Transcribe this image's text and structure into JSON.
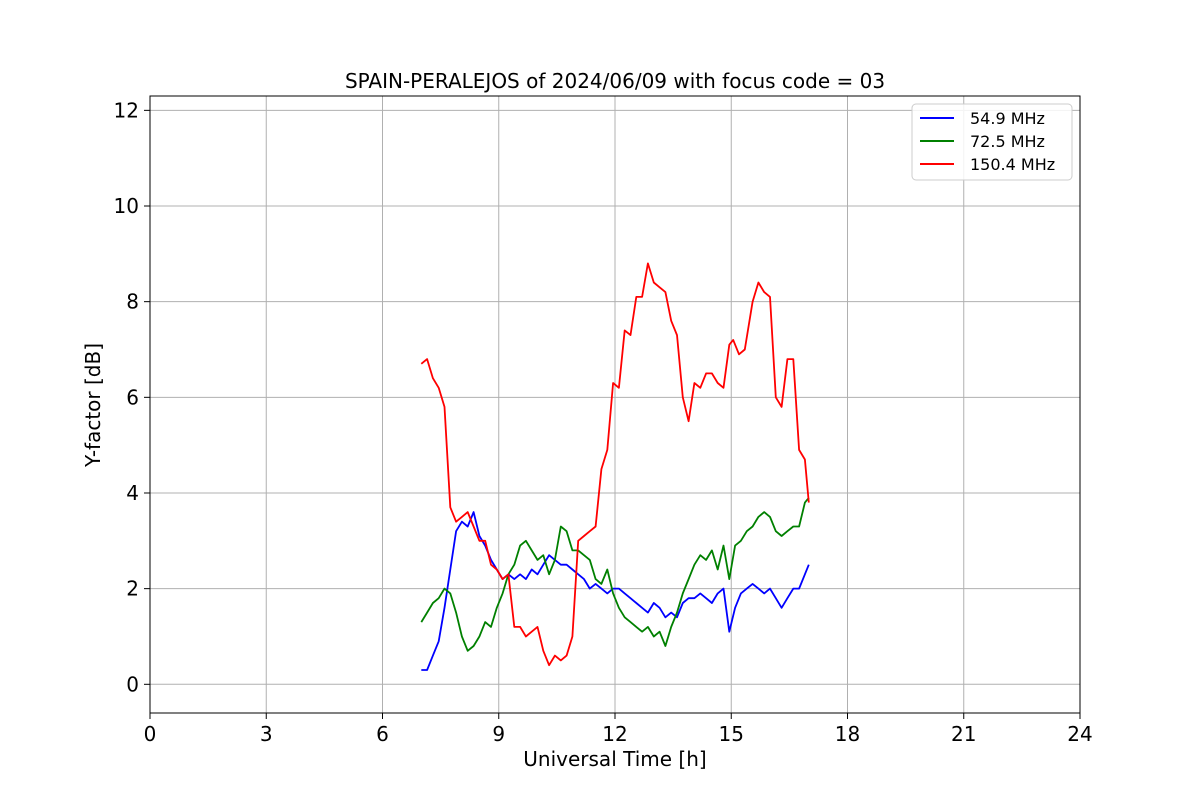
{
  "chart_data": {
    "type": "line",
    "title": "SPAIN-PERALEJOS of 2024/06/09 with focus code = 03",
    "xlabel": "Universal Time [h]",
    "ylabel": "Y-factor [dB]",
    "xlim": [
      0,
      24
    ],
    "ylim": [
      -0.6,
      12.3
    ],
    "xticks": [
      0,
      3,
      6,
      9,
      12,
      15,
      18,
      21,
      24
    ],
    "xtick_labels": [
      "0",
      "3",
      "6",
      "9",
      "12",
      "15",
      "18",
      "21",
      "24"
    ],
    "yticks": [
      0,
      2,
      4,
      6,
      8,
      10,
      12
    ],
    "ytick_labels": [
      "0",
      "2",
      "4",
      "6",
      "8",
      "10",
      "12"
    ],
    "grid": true,
    "legend_position": "top-right",
    "series": [
      {
        "name": "54.9 MHz",
        "color": "#0000ff",
        "x": [
          7.0,
          7.15,
          7.3,
          7.45,
          7.6,
          7.75,
          7.9,
          8.05,
          8.2,
          8.35,
          8.5,
          8.65,
          8.8,
          8.95,
          9.1,
          9.25,
          9.4,
          9.55,
          9.7,
          9.85,
          10.0,
          10.15,
          10.3,
          10.45,
          10.6,
          10.75,
          10.9,
          11.05,
          11.2,
          11.35,
          11.5,
          11.65,
          11.8,
          11.95,
          12.1,
          12.25,
          12.4,
          12.55,
          12.7,
          12.85,
          13.0,
          13.15,
          13.3,
          13.45,
          13.6,
          13.75,
          13.9,
          14.05,
          14.2,
          14.35,
          14.5,
          14.65,
          14.8,
          14.95,
          15.1,
          15.25,
          15.4,
          15.55,
          15.7,
          15.85,
          16.0,
          16.15,
          16.3,
          16.45,
          16.6,
          16.75,
          16.9,
          17.0
        ],
        "values": [
          0.3,
          0.3,
          0.6,
          0.9,
          1.6,
          2.4,
          3.2,
          3.4,
          3.3,
          3.6,
          3.1,
          2.9,
          2.6,
          2.4,
          2.2,
          2.3,
          2.2,
          2.3,
          2.2,
          2.4,
          2.3,
          2.5,
          2.7,
          2.6,
          2.5,
          2.5,
          2.4,
          2.3,
          2.2,
          2.0,
          2.1,
          2.0,
          1.9,
          2.0,
          2.0,
          1.9,
          1.8,
          1.7,
          1.6,
          1.5,
          1.7,
          1.6,
          1.4,
          1.5,
          1.4,
          1.7,
          1.8,
          1.8,
          1.9,
          1.8,
          1.7,
          1.9,
          2.0,
          1.1,
          1.6,
          1.9,
          2.0,
          2.1,
          2.0,
          1.9,
          2.0,
          1.8,
          1.6,
          1.8,
          2.0,
          2.0,
          2.3,
          2.5
        ]
      },
      {
        "name": "72.5 MHz",
        "color": "#008000",
        "x": [
          7.0,
          7.15,
          7.3,
          7.45,
          7.6,
          7.75,
          7.9,
          8.05,
          8.2,
          8.35,
          8.5,
          8.65,
          8.8,
          8.95,
          9.1,
          9.25,
          9.4,
          9.55,
          9.7,
          9.85,
          10.0,
          10.15,
          10.3,
          10.45,
          10.6,
          10.75,
          10.9,
          11.05,
          11.2,
          11.35,
          11.5,
          11.65,
          11.8,
          11.95,
          12.1,
          12.25,
          12.4,
          12.55,
          12.7,
          12.85,
          13.0,
          13.15,
          13.3,
          13.45,
          13.6,
          13.75,
          13.9,
          14.05,
          14.2,
          14.35,
          14.5,
          14.65,
          14.8,
          14.95,
          15.1,
          15.25,
          15.4,
          15.55,
          15.7,
          15.85,
          16.0,
          16.15,
          16.3,
          16.45,
          16.6,
          16.75,
          16.9,
          17.0
        ],
        "values": [
          1.3,
          1.5,
          1.7,
          1.8,
          2.0,
          1.9,
          1.5,
          1.0,
          0.7,
          0.8,
          1.0,
          1.3,
          1.2,
          1.6,
          1.9,
          2.3,
          2.5,
          2.9,
          3.0,
          2.8,
          2.6,
          2.7,
          2.3,
          2.6,
          3.3,
          3.2,
          2.8,
          2.8,
          2.7,
          2.6,
          2.2,
          2.1,
          2.4,
          1.9,
          1.6,
          1.4,
          1.3,
          1.2,
          1.1,
          1.2,
          1.0,
          1.1,
          0.8,
          1.2,
          1.5,
          1.9,
          2.2,
          2.5,
          2.7,
          2.6,
          2.8,
          2.4,
          2.9,
          2.2,
          2.9,
          3.0,
          3.2,
          3.3,
          3.5,
          3.6,
          3.5,
          3.2,
          3.1,
          3.2,
          3.3,
          3.3,
          3.8,
          3.9
        ]
      },
      {
        "name": "150.4 MHz",
        "color": "#ff0000",
        "x": [
          7.0,
          7.15,
          7.3,
          7.45,
          7.6,
          7.75,
          7.9,
          8.05,
          8.2,
          8.35,
          8.5,
          8.65,
          8.8,
          8.95,
          9.1,
          9.25,
          9.4,
          9.55,
          9.7,
          9.85,
          10.0,
          10.15,
          10.3,
          10.45,
          10.6,
          10.75,
          10.9,
          11.05,
          11.2,
          11.35,
          11.5,
          11.65,
          11.8,
          11.95,
          12.1,
          12.25,
          12.4,
          12.55,
          12.7,
          12.85,
          13.0,
          13.15,
          13.3,
          13.45,
          13.6,
          13.75,
          13.9,
          14.05,
          14.2,
          14.35,
          14.5,
          14.65,
          14.8,
          14.95,
          15.05,
          15.2,
          15.35,
          15.55,
          15.7,
          15.85,
          16.0,
          16.15,
          16.3,
          16.45,
          16.6,
          16.75,
          16.9,
          17.0
        ],
        "values": [
          6.7,
          6.8,
          6.4,
          6.2,
          5.8,
          3.7,
          3.4,
          3.5,
          3.6,
          3.3,
          3.0,
          3.0,
          2.5,
          2.4,
          2.2,
          2.3,
          1.2,
          1.2,
          1.0,
          1.1,
          1.2,
          0.7,
          0.4,
          0.6,
          0.5,
          0.6,
          1.0,
          3.0,
          3.1,
          3.2,
          3.3,
          4.5,
          4.9,
          6.3,
          6.2,
          7.4,
          7.3,
          8.1,
          8.1,
          8.8,
          8.4,
          8.3,
          8.2,
          7.6,
          7.3,
          6.0,
          5.5,
          6.3,
          6.2,
          6.5,
          6.5,
          6.3,
          6.2,
          7.1,
          7.2,
          6.9,
          7.0,
          8.0,
          8.4,
          8.2,
          8.1,
          6.0,
          5.8,
          6.8,
          6.8,
          4.9,
          4.7,
          3.8
        ]
      }
    ]
  }
}
